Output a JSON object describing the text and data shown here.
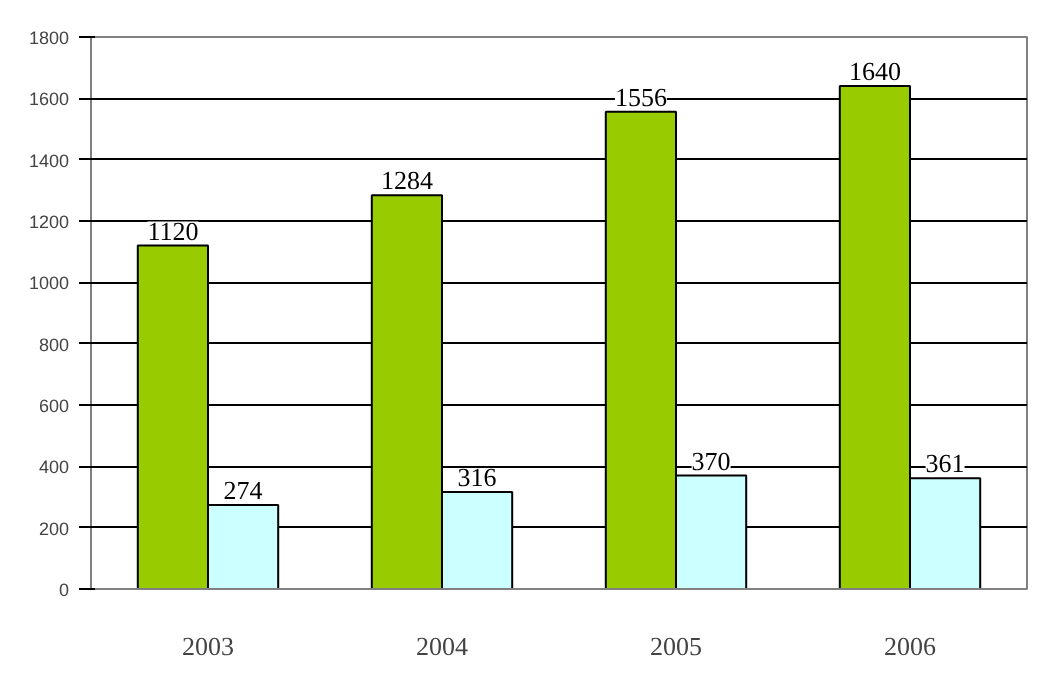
{
  "chart_data": {
    "type": "bar",
    "categories": [
      "2003",
      "2004",
      "2005",
      "2006"
    ],
    "series": [
      {
        "color": "#99cc00",
        "values": [
          1120,
          1284,
          1556,
          1640
        ]
      },
      {
        "color": "#ccffff",
        "values": [
          274,
          316,
          370,
          361
        ]
      }
    ],
    "ylim": [
      0,
      1800
    ],
    "yticks": [
      0,
      200,
      400,
      600,
      800,
      1000,
      1200,
      1400,
      1600,
      1800
    ],
    "grid": "y",
    "data_labels": true
  }
}
